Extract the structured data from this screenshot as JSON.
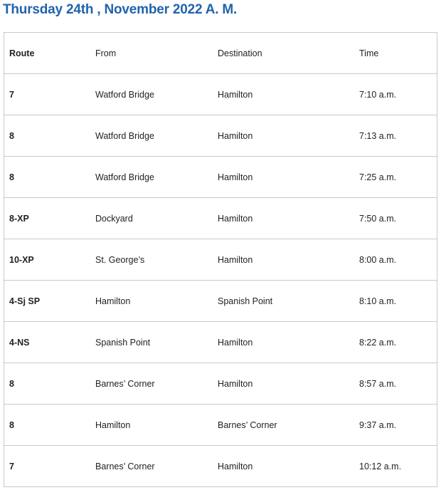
{
  "title": "Thursday 24th , November 2022 A. M.",
  "table": {
    "headers": [
      "Route",
      "From",
      "Destination",
      "Time"
    ],
    "rows": [
      [
        "7",
        "Watford Bridge",
        "Hamilton",
        "7:10 a.m."
      ],
      [
        "8",
        "Watford Bridge",
        "Hamilton",
        "7:13 a.m."
      ],
      [
        "8",
        "Watford Bridge",
        "Hamilton",
        "7:25 a.m."
      ],
      [
        "8-XP",
        "Dockyard",
        "Hamilton",
        "7:50 a.m."
      ],
      [
        "10-XP",
        "St. George’s",
        "Hamilton",
        "8:00 a.m."
      ],
      [
        "4-Sj SP",
        "Hamilton",
        "Spanish Point",
        "8:10 a.m."
      ],
      [
        "4-NS",
        "Spanish Point",
        "Hamilton",
        "8:22 a.m."
      ],
      [
        "8",
        "Barnes’ Corner",
        "Hamilton",
        "8:57 a.m."
      ],
      [
        "8",
        "Hamilton",
        "Barnes’ Corner",
        "9:37 a.m."
      ],
      [
        "7",
        "Barnes’ Corner",
        "Hamilton",
        "10:12 a.m."
      ]
    ]
  }
}
